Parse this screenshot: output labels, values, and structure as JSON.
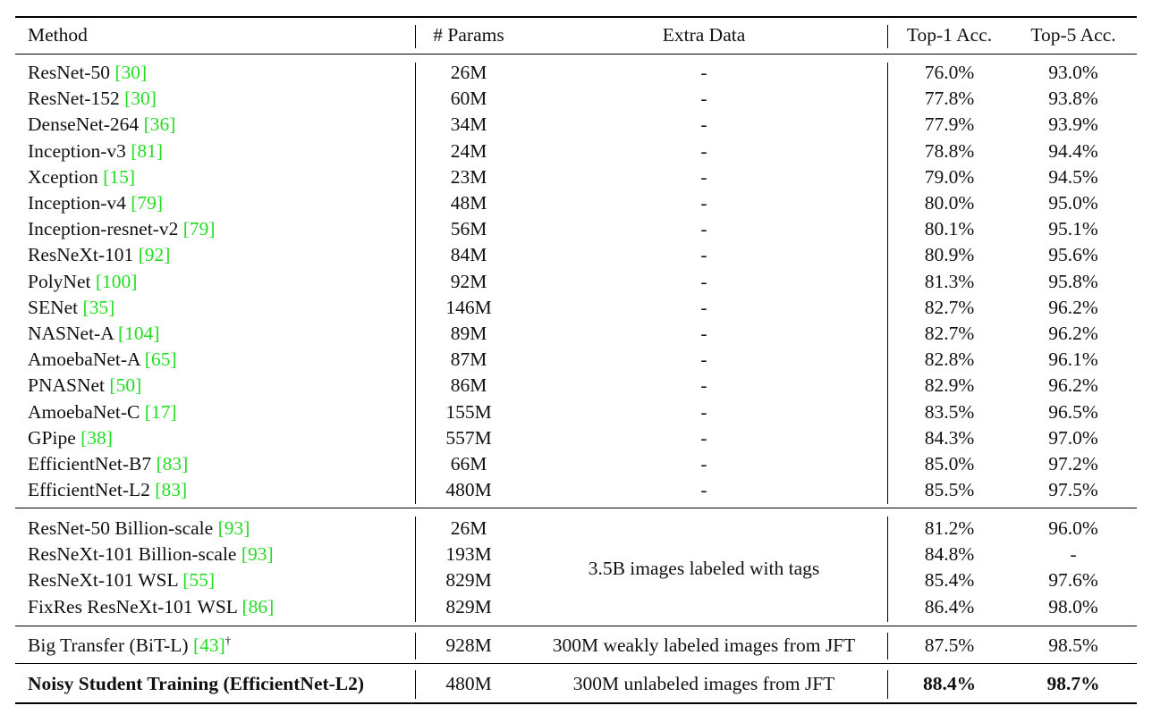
{
  "header": {
    "method": "Method",
    "params": "# Params",
    "extra": "Extra Data",
    "top1": "Top-1 Acc.",
    "top5": "Top-5 Acc."
  },
  "group1": [
    {
      "name": "ResNet-50",
      "ref": "30",
      "params": "26M",
      "extra": "-",
      "top1": "76.0%",
      "top5": "93.0%"
    },
    {
      "name": "ResNet-152",
      "ref": "30",
      "params": "60M",
      "extra": "-",
      "top1": "77.8%",
      "top5": "93.8%"
    },
    {
      "name": "DenseNet-264",
      "ref": "36",
      "params": "34M",
      "extra": "-",
      "top1": "77.9%",
      "top5": "93.9%"
    },
    {
      "name": "Inception-v3",
      "ref": "81",
      "params": "24M",
      "extra": "-",
      "top1": "78.8%",
      "top5": "94.4%"
    },
    {
      "name": "Xception",
      "ref": "15",
      "params": "23M",
      "extra": "-",
      "top1": "79.0%",
      "top5": "94.5%"
    },
    {
      "name": "Inception-v4",
      "ref": "79",
      "params": "48M",
      "extra": "-",
      "top1": "80.0%",
      "top5": "95.0%"
    },
    {
      "name": "Inception-resnet-v2",
      "ref": "79",
      "params": "56M",
      "extra": "-",
      "top1": "80.1%",
      "top5": "95.1%"
    },
    {
      "name": "ResNeXt-101",
      "ref": "92",
      "params": "84M",
      "extra": "-",
      "top1": "80.9%",
      "top5": "95.6%"
    },
    {
      "name": "PolyNet",
      "ref": "100",
      "params": "92M",
      "extra": "-",
      "top1": "81.3%",
      "top5": "95.8%"
    },
    {
      "name": "SENet",
      "ref": "35",
      "params": "146M",
      "extra": "-",
      "top1": "82.7%",
      "top5": "96.2%"
    },
    {
      "name": "NASNet-A",
      "ref": "104",
      "params": "89M",
      "extra": "-",
      "top1": "82.7%",
      "top5": "96.2%"
    },
    {
      "name": "AmoebaNet-A",
      "ref": "65",
      "params": "87M",
      "extra": "-",
      "top1": "82.8%",
      "top5": "96.1%"
    },
    {
      "name": "PNASNet",
      "ref": "50",
      "params": "86M",
      "extra": "-",
      "top1": "82.9%",
      "top5": "96.2%"
    },
    {
      "name": "AmoebaNet-C",
      "ref": "17",
      "params": "155M",
      "extra": "-",
      "top1": "83.5%",
      "top5": "96.5%"
    },
    {
      "name": "GPipe",
      "ref": "38",
      "params": "557M",
      "extra": "-",
      "top1": "84.3%",
      "top5": "97.0%"
    },
    {
      "name": "EfficientNet-B7",
      "ref": "83",
      "params": "66M",
      "extra": "-",
      "top1": "85.0%",
      "top5": "97.2%"
    },
    {
      "name": "EfficientNet-L2",
      "ref": "83",
      "params": "480M",
      "extra": "-",
      "top1": "85.5%",
      "top5": "97.5%"
    }
  ],
  "group2": [
    {
      "name": "ResNet-50 Billion-scale",
      "ref": "93",
      "params": "26M",
      "top1": "81.2%",
      "top5": "96.0%"
    },
    {
      "name": "ResNeXt-101 Billion-scale",
      "ref": "93",
      "params": "193M",
      "top1": "84.8%",
      "top5": "-"
    },
    {
      "name": "ResNeXt-101 WSL",
      "ref": "55",
      "params": "829M",
      "top1": "85.4%",
      "top5": "97.6%"
    },
    {
      "name": "FixRes ResNeXt-101 WSL",
      "ref": "86",
      "params": "829M",
      "top1": "86.4%",
      "top5": "98.0%"
    }
  ],
  "group2_extra": "3.5B images labeled with tags",
  "bit": {
    "name": "Big Transfer (BiT-L)",
    "ref": "43",
    "mark": "†",
    "params": "928M",
    "extra": "300M weakly labeled images from JFT",
    "top1": "87.5%",
    "top5": "98.5%"
  },
  "noisy": {
    "name": "Noisy Student Training (EfficientNet-L2)",
    "params": "480M",
    "extra": "300M unlabeled images from JFT",
    "top1": "88.4%",
    "top5": "98.7%"
  }
}
